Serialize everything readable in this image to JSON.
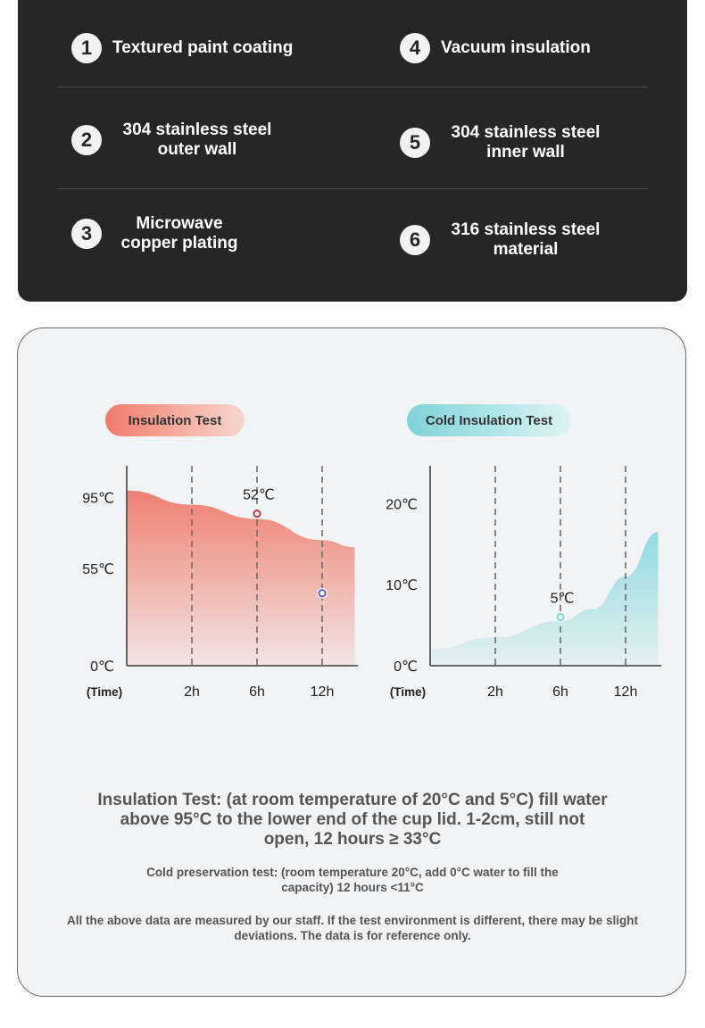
{
  "layers": [
    {
      "number": "1",
      "label": "Textured paint coating"
    },
    {
      "number": "2",
      "label": "304 stainless steel outer wall"
    },
    {
      "number": "3",
      "label": "Microwave copper plating"
    },
    {
      "number": "4",
      "label": "Vacuum insulation"
    },
    {
      "number": "5",
      "label": "304 stainless steel inner wall"
    },
    {
      "number": "6",
      "label": "316 stainless steel material"
    }
  ],
  "colors": {
    "dark_panel": "#262626",
    "hot_fill": "#ef7a6b",
    "cold_fill": "#86d8df",
    "hot_marker": "#c2415a",
    "cold_marker": "#6a6cc4"
  },
  "chart_data": [
    {
      "type": "area",
      "title": "Insulation Test",
      "xlabel": "(Time)",
      "x_ticks": [
        "2h",
        "6h",
        "12h"
      ],
      "y_ticks": [
        "0℃",
        "55℃",
        "95℃"
      ],
      "y_tick_values": [
        0,
        55,
        95
      ],
      "ylim": [
        0,
        110
      ],
      "x_index_range": [
        0,
        3.5
      ],
      "curve": [
        [
          0,
          99
        ],
        [
          1,
          91
        ],
        [
          2,
          83
        ],
        [
          3,
          71
        ],
        [
          3.5,
          67
        ]
      ],
      "annotation": {
        "x_index": 2,
        "value": 52,
        "label": "52℃"
      },
      "extra_marker": {
        "x_index": 3,
        "value": 41
      },
      "grid": "vertical dashed at x ticks"
    },
    {
      "type": "area",
      "title": "Cold Insulation Test",
      "xlabel": "(Time)",
      "x_ticks": [
        "2h",
        "6h",
        "12h"
      ],
      "y_ticks": [
        "0℃",
        "10℃",
        "20℃"
      ],
      "y_tick_values": [
        0,
        10,
        20
      ],
      "ylim": [
        0,
        24
      ],
      "x_index_range": [
        0,
        3.5
      ],
      "curve": [
        [
          0,
          2
        ],
        [
          1,
          3.5
        ],
        [
          2,
          5.5
        ],
        [
          2.5,
          7
        ],
        [
          3,
          11
        ],
        [
          3.5,
          16.5
        ]
      ],
      "annotation": {
        "x_index": 2,
        "value": 5,
        "label": "5℃"
      },
      "grid": "vertical dashed at x ticks"
    }
  ],
  "notes": {
    "main": "Insulation Test: (at room temperature of 20°C and 5°C) fill water above 95°C to the lower end of the cup lid. 1-2cm, still not open, 12 hours ≥ 33°C",
    "cold": "Cold preservation test: (room temperature 20°C, add 0°C water to fill the capacity) 12 hours <11°C",
    "disclaimer": "All the above data are measured by our staff. If the test environment is different, there may be slight deviations. The data is for reference only."
  }
}
